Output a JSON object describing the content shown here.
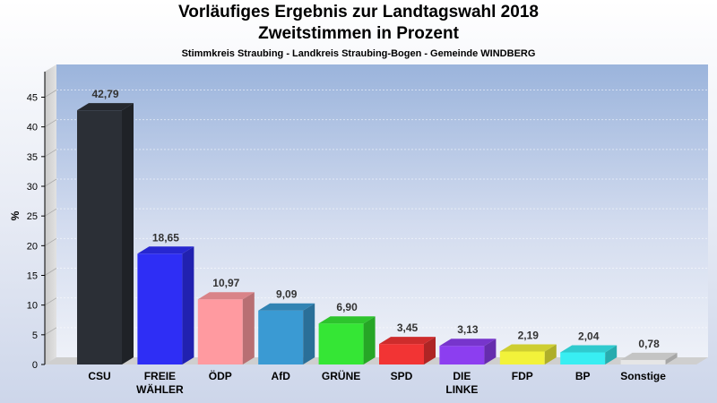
{
  "header": {
    "title": "Vorläufiges Ergebnis zur Landtagswahl 2018",
    "subtitle": "Zweitstimmen in Prozent",
    "region": "Stimmkreis Straubing - Landkreis Straubing-Bogen - Gemeinde WINDBERG"
  },
  "chart_data": {
    "type": "bar",
    "title": "Vorläufiges Ergebnis zur Landtagswahl 2018",
    "subtitle": "Zweitstimmen in Prozent",
    "ylabel": "%",
    "xlabel": "",
    "ylim": [
      0,
      45
    ],
    "yticks": [
      0,
      5,
      10,
      15,
      20,
      25,
      30,
      35,
      40,
      45
    ],
    "grid": true,
    "categories": [
      [
        "CSU"
      ],
      [
        "FREIE",
        "WÄHLER"
      ],
      [
        "ÖDP"
      ],
      [
        "AfD"
      ],
      [
        "GRÜNE"
      ],
      [
        "SPD"
      ],
      [
        "DIE",
        "LINKE"
      ],
      [
        "FDP"
      ],
      [
        "BP"
      ],
      [
        "Sonstige"
      ]
    ],
    "values": [
      42.79,
      18.65,
      10.97,
      9.09,
      6.9,
      3.45,
      3.13,
      2.19,
      2.04,
      0.78
    ],
    "value_labels": [
      "42,79",
      "18,65",
      "10,97",
      "9,09",
      "6,90",
      "3,45",
      "3,13",
      "2,19",
      "2,04",
      "0,78"
    ],
    "colors": [
      "#2b2f36",
      "#2e2ef5",
      "#ff9aa0",
      "#3a9ad3",
      "#35e635",
      "#f23434",
      "#8c3ef0",
      "#f2f23a",
      "#38eef2",
      "#e6e6e6"
    ]
  }
}
